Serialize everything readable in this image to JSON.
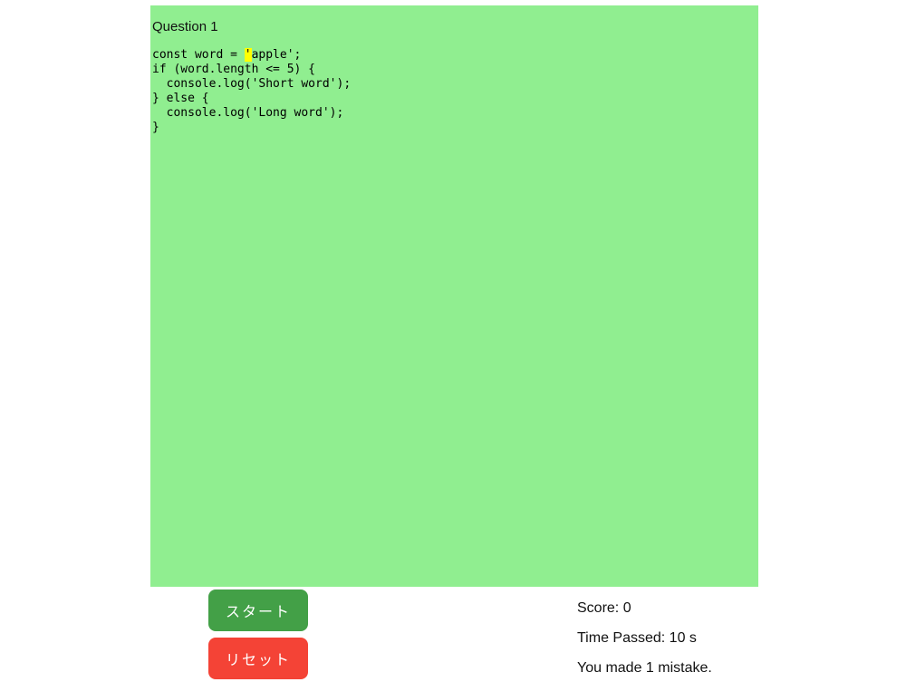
{
  "panel": {
    "question_label": "Question 1",
    "bg_color": "#90ee90"
  },
  "code": {
    "before": "const word = ",
    "current": "'",
    "after": "apple';\nif (word.length <= 5) {\n  console.log('Short word');\n} else {\n  console.log('Long word');\n}",
    "highlight_color": "#ffff00"
  },
  "controls": {
    "start_label": "スタート",
    "start_color": "#43a047",
    "reset_label": "リセット",
    "reset_color": "#f44336"
  },
  "stats": {
    "score": "Score: 0",
    "time": "Time Passed: 10 s",
    "mistakes": "You made 1 mistake."
  }
}
